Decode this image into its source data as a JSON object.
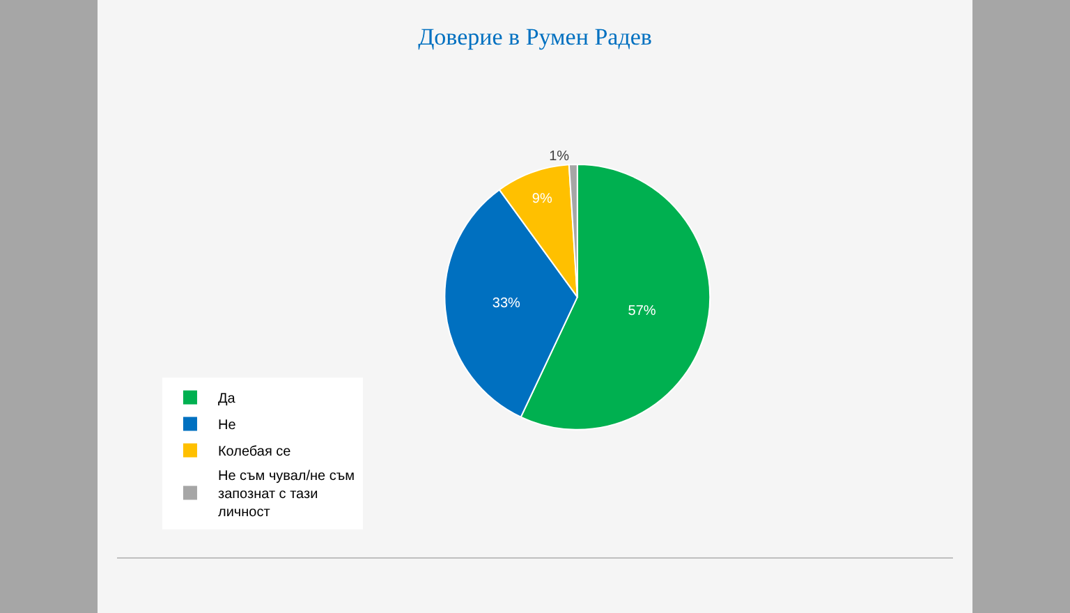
{
  "chart_data": {
    "type": "pie",
    "title": "Доверие в Румен Радев",
    "categories": [
      "Да",
      "Не",
      "Колебая се",
      "Не съм чувал/не съм запознат с тази личност"
    ],
    "values": [
      57,
      33,
      9,
      1
    ],
    "colors": [
      "#00b050",
      "#0070c0",
      "#ffc000",
      "#a6a6a6"
    ],
    "value_labels": [
      "57%",
      "33%",
      "9%",
      "1%"
    ],
    "legend": "bottom left"
  }
}
